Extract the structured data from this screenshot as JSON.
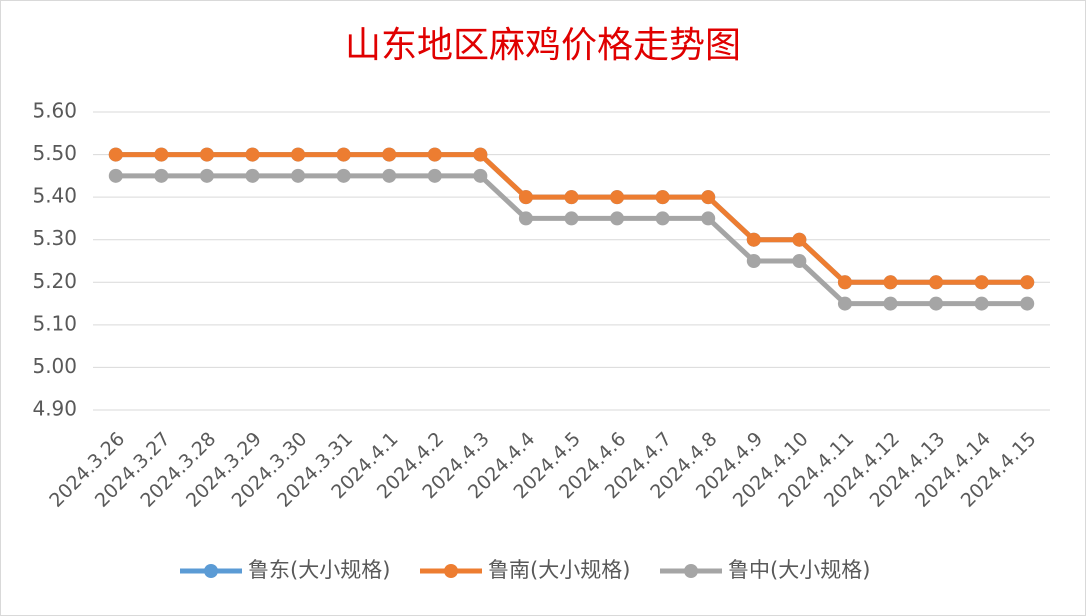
{
  "chart_data": {
    "type": "line",
    "title": "山东地区麻鸡价格走势图",
    "categories": [
      "2024.3.26",
      "2024.3.27",
      "2024.3.28",
      "2024.3.29",
      "2024.3.30",
      "2024.3.31",
      "2024.4.1",
      "2024.4.2",
      "2024.4.3",
      "2024.4.4",
      "2024.4.5",
      "2024.4.6",
      "2024.4.7",
      "2024.4.8",
      "2024.4.9",
      "2024.4.10",
      "2024.4.11",
      "2024.4.12",
      "2024.4.13",
      "2024.4.14",
      "2024.4.15"
    ],
    "series": [
      {
        "name": "鲁东(大小规格)",
        "color": "#5b9bd5",
        "values": [
          5.5,
          5.5,
          5.5,
          5.5,
          5.5,
          5.5,
          5.5,
          5.5,
          5.5,
          5.4,
          5.4,
          5.4,
          5.4,
          5.4,
          5.3,
          5.3,
          5.2,
          5.2,
          5.2,
          5.2,
          5.2
        ]
      },
      {
        "name": "鲁南(大小规格)",
        "color": "#ed7d31",
        "values": [
          5.5,
          5.5,
          5.5,
          5.5,
          5.5,
          5.5,
          5.5,
          5.5,
          5.5,
          5.4,
          5.4,
          5.4,
          5.4,
          5.4,
          5.3,
          5.3,
          5.2,
          5.2,
          5.2,
          5.2,
          5.2
        ]
      },
      {
        "name": "鲁中(大小规格)",
        "color": "#a5a5a5",
        "values": [
          5.45,
          5.45,
          5.45,
          5.45,
          5.45,
          5.45,
          5.45,
          5.45,
          5.45,
          5.35,
          5.35,
          5.35,
          5.35,
          5.35,
          5.25,
          5.25,
          5.15,
          5.15,
          5.15,
          5.15,
          5.15
        ]
      }
    ],
    "ylim": [
      4.9,
      5.6
    ],
    "yticks": [
      {
        "value": 4.9,
        "label": "4.90"
      },
      {
        "value": 5.0,
        "label": "5.00"
      },
      {
        "value": 5.1,
        "label": "5.10"
      },
      {
        "value": 5.2,
        "label": "5.20"
      },
      {
        "value": 5.3,
        "label": "5.30"
      },
      {
        "value": 5.4,
        "label": "5.40"
      },
      {
        "value": 5.5,
        "label": "5.50"
      },
      {
        "value": 5.6,
        "label": "5.60"
      }
    ],
    "grid": true,
    "legend": "bottom"
  }
}
